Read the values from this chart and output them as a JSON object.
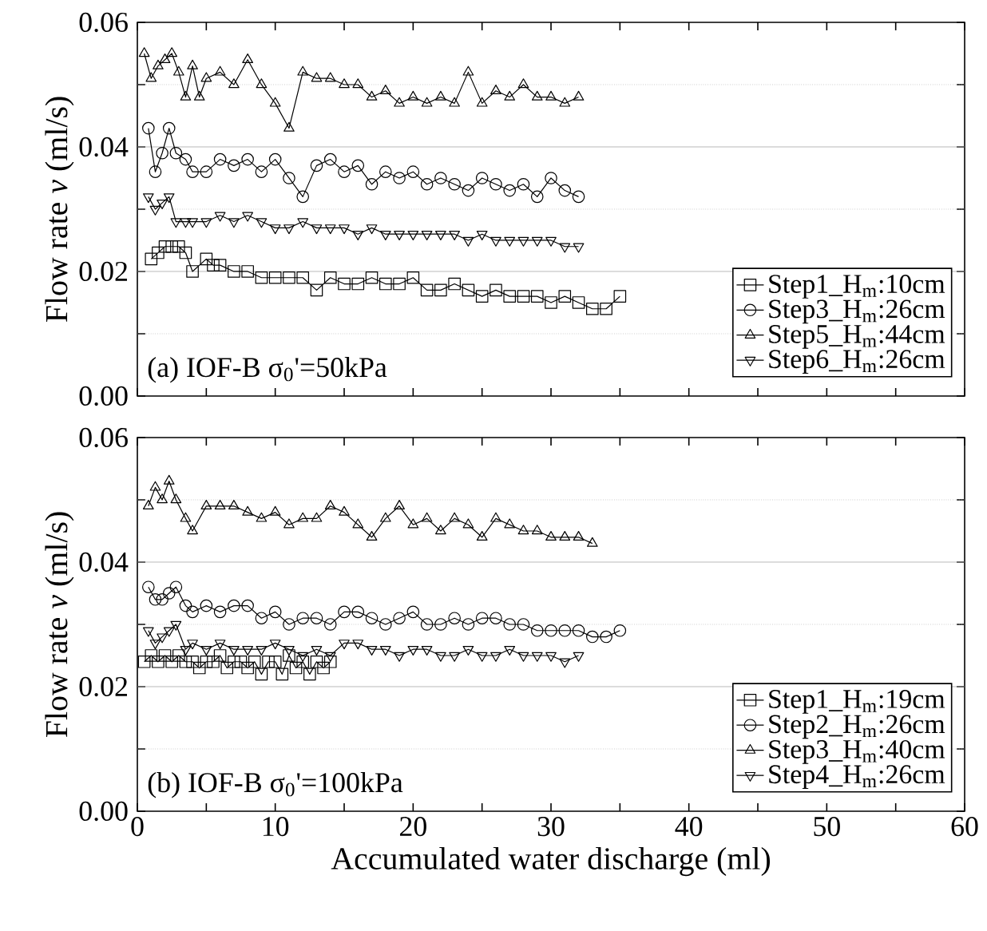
{
  "chart_data": [
    {
      "type": "line",
      "annotations": [
        "(a) IOF-B σ$_{0}$'=50kPa"
      ],
      "ylabel": "Flow rate *v* (ml/s)",
      "xlim": [
        0,
        60
      ],
      "ylim": [
        0,
        0.06
      ],
      "xticks": [
        0,
        {
          "value": 5,
          "label": null
        },
        10,
        {
          "value": 15,
          "label": null
        },
        20,
        {
          "value": 25,
          "label": null
        },
        30,
        {
          "value": 35,
          "label": null
        },
        40,
        {
          "value": 45,
          "label": null
        },
        50,
        {
          "value": 55,
          "label": null
        },
        60
      ],
      "yticks": [
        {
          "value": 0,
          "label": "0.00"
        },
        {
          "value": 0.01,
          "label": null
        },
        0.02,
        {
          "value": 0.03,
          "label": null
        },
        0.04,
        {
          "value": 0.05,
          "label": null
        },
        0.06
      ],
      "tick_labels": "y",
      "grid": "y",
      "legend": "bottom right",
      "series": [
        {
          "name": "Step1_H$_{m}$:10cm",
          "color": "#000000",
          "marker": "square",
          "x": [
            1,
            1.5,
            2,
            2.5,
            3,
            3.5,
            4,
            5,
            5.5,
            6,
            7,
            8,
            9,
            10,
            11,
            12,
            13,
            14,
            15,
            16,
            17,
            18,
            19,
            20,
            21,
            22,
            23,
            24,
            25,
            26,
            27,
            28,
            29,
            30,
            31,
            32,
            33,
            34,
            35
          ],
          "values": [
            0.022,
            0.023,
            0.024,
            0.024,
            0.024,
            0.023,
            0.02,
            0.022,
            0.021,
            0.021,
            0.02,
            0.02,
            0.019,
            0.019,
            0.019,
            0.019,
            0.017,
            0.019,
            0.018,
            0.018,
            0.019,
            0.018,
            0.018,
            0.019,
            0.017,
            0.017,
            0.018,
            0.017,
            0.016,
            0.017,
            0.016,
            0.016,
            0.016,
            0.015,
            0.016,
            0.015,
            0.014,
            0.014,
            0.016
          ]
        },
        {
          "name": "Step3_H$_{m}$:26cm",
          "color": "#000000",
          "marker": "circle",
          "x": [
            0.8,
            1.3,
            1.8,
            2.3,
            2.8,
            3.5,
            4,
            5,
            6,
            7,
            8,
            9,
            10,
            11,
            12,
            13,
            14,
            15,
            16,
            17,
            18,
            19,
            20,
            21,
            22,
            23,
            24,
            25,
            26,
            27,
            28,
            29,
            30,
            31,
            32
          ],
          "values": [
            0.043,
            0.036,
            0.039,
            0.043,
            0.039,
            0.038,
            0.036,
            0.036,
            0.038,
            0.037,
            0.038,
            0.036,
            0.038,
            0.035,
            0.032,
            0.037,
            0.038,
            0.036,
            0.037,
            0.034,
            0.036,
            0.035,
            0.036,
            0.034,
            0.035,
            0.034,
            0.033,
            0.035,
            0.034,
            0.033,
            0.034,
            0.032,
            0.035,
            0.033,
            0.032
          ]
        },
        {
          "name": "Step5_H$_{m}$:44cm",
          "color": "#000000",
          "marker": "triangle",
          "x": [
            0.5,
            1,
            1.5,
            2,
            2.5,
            3,
            3.5,
            4,
            4.5,
            5,
            6,
            7,
            8,
            9,
            10,
            11,
            12,
            13,
            14,
            15,
            16,
            17,
            18,
            19,
            20,
            21,
            22,
            23,
            24,
            25,
            26,
            27,
            28,
            29,
            30,
            31,
            32
          ],
          "values": [
            0.055,
            0.051,
            0.053,
            0.054,
            0.055,
            0.052,
            0.048,
            0.053,
            0.048,
            0.051,
            0.052,
            0.05,
            0.054,
            0.05,
            0.047,
            0.043,
            0.052,
            0.051,
            0.051,
            0.05,
            0.05,
            0.048,
            0.049,
            0.047,
            0.048,
            0.047,
            0.048,
            0.047,
            0.052,
            0.047,
            0.049,
            0.048,
            0.05,
            0.048,
            0.048,
            0.047,
            0.048
          ]
        },
        {
          "name": "Step6_H$_{m}$:26cm",
          "color": "#000000",
          "marker": "triangle-down",
          "x": [
            0.8,
            1.3,
            1.8,
            2.3,
            2.8,
            3.5,
            4,
            5,
            6,
            7,
            8,
            9,
            10,
            11,
            12,
            13,
            14,
            15,
            16,
            17,
            18,
            19,
            20,
            21,
            22,
            23,
            24,
            25,
            26,
            27,
            28,
            29,
            30,
            31,
            32
          ],
          "values": [
            0.032,
            0.03,
            0.031,
            0.032,
            0.028,
            0.028,
            0.028,
            0.028,
            0.029,
            0.028,
            0.029,
            0.028,
            0.027,
            0.027,
            0.028,
            0.027,
            0.027,
            0.027,
            0.026,
            0.027,
            0.026,
            0.026,
            0.026,
            0.026,
            0.026,
            0.026,
            0.025,
            0.026,
            0.025,
            0.025,
            0.025,
            0.025,
            0.025,
            0.024,
            0.024
          ]
        }
      ]
    },
    {
      "type": "line",
      "annotations": [
        "(b) IOF-B σ$_{0}$'=100kPa"
      ],
      "xlabel": "Accumulated water discharge (ml)",
      "ylabel": "Flow rate *v* (ml/s)",
      "xlim": [
        0,
        60
      ],
      "ylim": [
        0,
        0.06
      ],
      "xticks": [
        0,
        {
          "value": 5,
          "label": null
        },
        10,
        {
          "value": 15,
          "label": null
        },
        20,
        {
          "value": 25,
          "label": null
        },
        30,
        {
          "value": 35,
          "label": null
        },
        40,
        {
          "value": 45,
          "label": null
        },
        50,
        {
          "value": 55,
          "label": null
        },
        60
      ],
      "yticks": [
        {
          "value": 0,
          "label": "0.00"
        },
        {
          "value": 0.01,
          "label": null
        },
        0.02,
        {
          "value": 0.03,
          "label": null
        },
        0.04,
        {
          "value": 0.05,
          "label": null
        },
        0.06
      ],
      "grid": "y",
      "legend": "bottom right",
      "series": [
        {
          "name": "Step1_H$_{m}$:19cm",
          "color": "#000000",
          "marker": "square",
          "x": [
            0.5,
            1,
            1.5,
            2,
            2.5,
            3,
            3.5,
            4,
            4.5,
            5,
            5.5,
            6,
            6.5,
            7,
            7.5,
            8,
            8.5,
            9,
            9.5,
            10,
            10.5,
            11,
            11.5,
            12,
            12.5,
            13,
            13.5,
            14
          ],
          "values": [
            0.024,
            0.025,
            0.024,
            0.025,
            0.024,
            0.025,
            0.024,
            0.024,
            0.023,
            0.024,
            0.024,
            0.025,
            0.023,
            0.024,
            0.024,
            0.023,
            0.024,
            0.022,
            0.024,
            0.024,
            0.022,
            0.025,
            0.023,
            0.024,
            0.022,
            0.024,
            0.023,
            0.024
          ]
        },
        {
          "name": "Step2_H$_{m}$:26cm",
          "color": "#000000",
          "marker": "circle",
          "x": [
            0.8,
            1.3,
            1.8,
            2.3,
            2.8,
            3.5,
            4,
            5,
            6,
            7,
            8,
            9,
            10,
            11,
            12,
            13,
            14,
            15,
            16,
            17,
            18,
            19,
            20,
            21,
            22,
            23,
            24,
            25,
            26,
            27,
            28,
            29,
            30,
            31,
            32,
            33,
            34,
            35
          ],
          "values": [
            0.036,
            0.034,
            0.034,
            0.035,
            0.036,
            0.033,
            0.032,
            0.033,
            0.032,
            0.033,
            0.033,
            0.031,
            0.032,
            0.03,
            0.031,
            0.031,
            0.03,
            0.032,
            0.032,
            0.031,
            0.03,
            0.031,
            0.032,
            0.03,
            0.03,
            0.031,
            0.03,
            0.031,
            0.031,
            0.03,
            0.03,
            0.029,
            0.029,
            0.029,
            0.029,
            0.028,
            0.028,
            0.029
          ]
        },
        {
          "name": "Step3_H$_{m}$:40cm",
          "color": "#000000",
          "marker": "triangle",
          "x": [
            0.8,
            1.3,
            1.8,
            2.3,
            2.8,
            3.5,
            4,
            5,
            6,
            7,
            8,
            9,
            10,
            11,
            12,
            13,
            14,
            15,
            16,
            17,
            18,
            19,
            20,
            21,
            22,
            23,
            24,
            25,
            26,
            27,
            28,
            29,
            30,
            31,
            32,
            33
          ],
          "values": [
            0.049,
            0.052,
            0.05,
            0.053,
            0.05,
            0.047,
            0.045,
            0.049,
            0.049,
            0.049,
            0.048,
            0.047,
            0.048,
            0.046,
            0.047,
            0.047,
            0.049,
            0.048,
            0.046,
            0.044,
            0.047,
            0.049,
            0.046,
            0.047,
            0.045,
            0.047,
            0.046,
            0.044,
            0.047,
            0.046,
            0.045,
            0.045,
            0.044,
            0.044,
            0.044,
            0.043
          ]
        },
        {
          "name": "Step4_H$_{m}$:26cm",
          "color": "#000000",
          "marker": "triangle-down",
          "x": [
            0.8,
            1.3,
            1.8,
            2.3,
            2.8,
            3.5,
            4,
            5,
            6,
            7,
            8,
            9,
            10,
            11,
            12,
            13,
            14,
            15,
            16,
            17,
            18,
            19,
            20,
            21,
            22,
            23,
            24,
            25,
            26,
            27,
            28,
            29,
            30,
            31,
            32
          ],
          "values": [
            0.029,
            0.027,
            0.028,
            0.029,
            0.03,
            0.026,
            0.027,
            0.026,
            0.027,
            0.026,
            0.026,
            0.026,
            0.027,
            0.026,
            0.025,
            0.026,
            0.025,
            0.027,
            0.027,
            0.026,
            0.026,
            0.025,
            0.026,
            0.026,
            0.025,
            0.025,
            0.026,
            0.025,
            0.025,
            0.026,
            0.025,
            0.025,
            0.025,
            0.024,
            0.025
          ]
        }
      ]
    }
  ]
}
